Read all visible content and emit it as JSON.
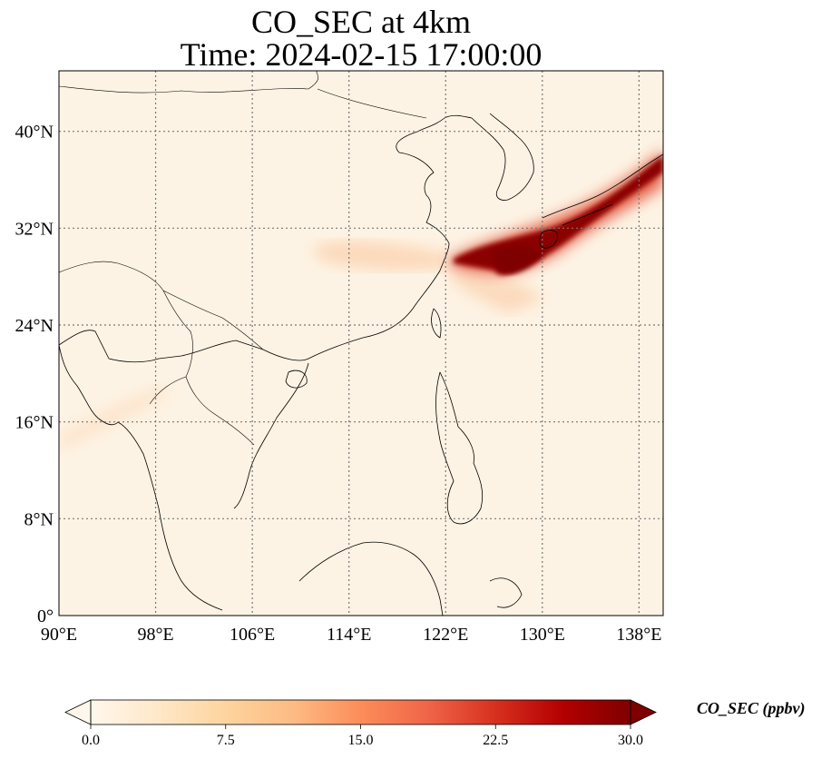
{
  "title": {
    "line1": "CO_SEC at 4km",
    "line2": "Time: 2024-02-15 17:00:00"
  },
  "map": {
    "extent": {
      "lon_min": 90,
      "lon_max": 140,
      "lat_min": 0,
      "lat_max": 45
    },
    "gridlines": "dotted",
    "lon_ticks": [
      {
        "value": 90,
        "label": "90°E"
      },
      {
        "value": 98,
        "label": "98°E"
      },
      {
        "value": 106,
        "label": "106°E"
      },
      {
        "value": 114,
        "label": "114°E"
      },
      {
        "value": 122,
        "label": "122°E"
      },
      {
        "value": 130,
        "label": "130°E"
      },
      {
        "value": 138,
        "label": "138°E"
      }
    ],
    "lat_ticks": [
      {
        "value": 0,
        "label": "0°"
      },
      {
        "value": 8,
        "label": "8°N"
      },
      {
        "value": 16,
        "label": "16°N"
      },
      {
        "value": 24,
        "label": "24°N"
      },
      {
        "value": 32,
        "label": "32°N"
      },
      {
        "value": 40,
        "label": "40°N"
      }
    ],
    "field_colormap": "OrRd",
    "background_value": 0.3
  },
  "colorbar": {
    "label": "CO_SEC (ppbv)",
    "min": 0.0,
    "max": 30.0,
    "extend": "both",
    "ticks": [
      {
        "value": 0.0,
        "label": "0.0"
      },
      {
        "value": 7.5,
        "label": "7.5"
      },
      {
        "value": 15.0,
        "label": "15.0"
      },
      {
        "value": 22.5,
        "label": "22.5"
      },
      {
        "value": 30.0,
        "label": "30.0"
      }
    ],
    "colors": [
      "#fff7ec",
      "#fee8c8",
      "#fdd49e",
      "#fdbb84",
      "#fc8d59",
      "#ef6548",
      "#d7301f",
      "#b30000",
      "#7f0000"
    ]
  }
}
